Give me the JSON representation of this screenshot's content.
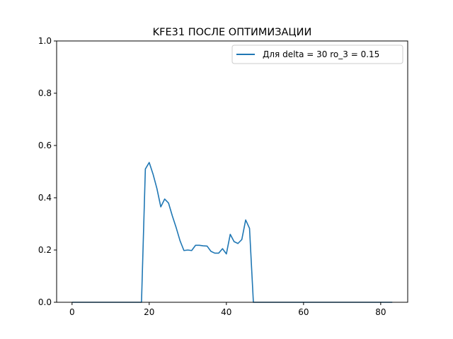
{
  "chart_data": {
    "type": "line",
    "title": "KFE31 ПОСЛЕ ОПТИМИЗАЦИИ",
    "xlabel": "",
    "ylabel": "",
    "xlim": [
      -4,
      87
    ],
    "ylim": [
      0.0,
      1.0
    ],
    "x_ticks": [
      0,
      20,
      40,
      60,
      80
    ],
    "y_ticks": [
      0.0,
      0.2,
      0.4,
      0.6,
      0.8,
      1.0
    ],
    "x_tick_labels": [
      "0",
      "20",
      "40",
      "60",
      "80"
    ],
    "y_tick_labels": [
      "0.0",
      "0.2",
      "0.4",
      "0.6",
      "0.8",
      "1.0"
    ],
    "grid": false,
    "legend_position": "top-right",
    "series": [
      {
        "name": "Для delta = 30 ro_3 = 0.15",
        "color": "#1f77b4",
        "x": [
          0,
          1,
          2,
          3,
          4,
          5,
          6,
          7,
          8,
          9,
          10,
          11,
          12,
          13,
          14,
          15,
          16,
          17,
          18,
          19,
          20,
          21,
          22,
          23,
          24,
          25,
          26,
          27,
          28,
          29,
          30,
          31,
          32,
          33,
          34,
          35,
          36,
          37,
          38,
          39,
          40,
          41,
          42,
          43,
          44,
          45,
          46,
          47,
          48,
          49,
          50,
          51,
          52,
          53,
          54,
          55,
          56,
          57,
          58,
          59,
          60,
          61,
          62,
          63,
          64,
          65,
          66,
          67,
          68,
          69,
          70,
          71,
          72,
          73,
          74,
          75,
          76,
          77,
          78,
          79,
          80,
          81,
          82,
          83
        ],
        "y": [
          0,
          0,
          0,
          0,
          0,
          0,
          0,
          0,
          0,
          0,
          0,
          0,
          0,
          0,
          0,
          0,
          0,
          0,
          0,
          0.51,
          0.535,
          0.49,
          0.435,
          0.365,
          0.395,
          0.38,
          0.33,
          0.285,
          0.235,
          0.198,
          0.2,
          0.198,
          0.218,
          0.218,
          0.216,
          0.215,
          0.195,
          0.188,
          0.188,
          0.205,
          0.185,
          0.26,
          0.232,
          0.225,
          0.24,
          0.315,
          0.283,
          0,
          0,
          0,
          0,
          0,
          0,
          0,
          0,
          0,
          0,
          0,
          0,
          0,
          0,
          0,
          0,
          0,
          0,
          0,
          0,
          0,
          0,
          0,
          0,
          0,
          0,
          0,
          0,
          0,
          0,
          0,
          0,
          0,
          0,
          0,
          0,
          0
        ]
      }
    ]
  }
}
